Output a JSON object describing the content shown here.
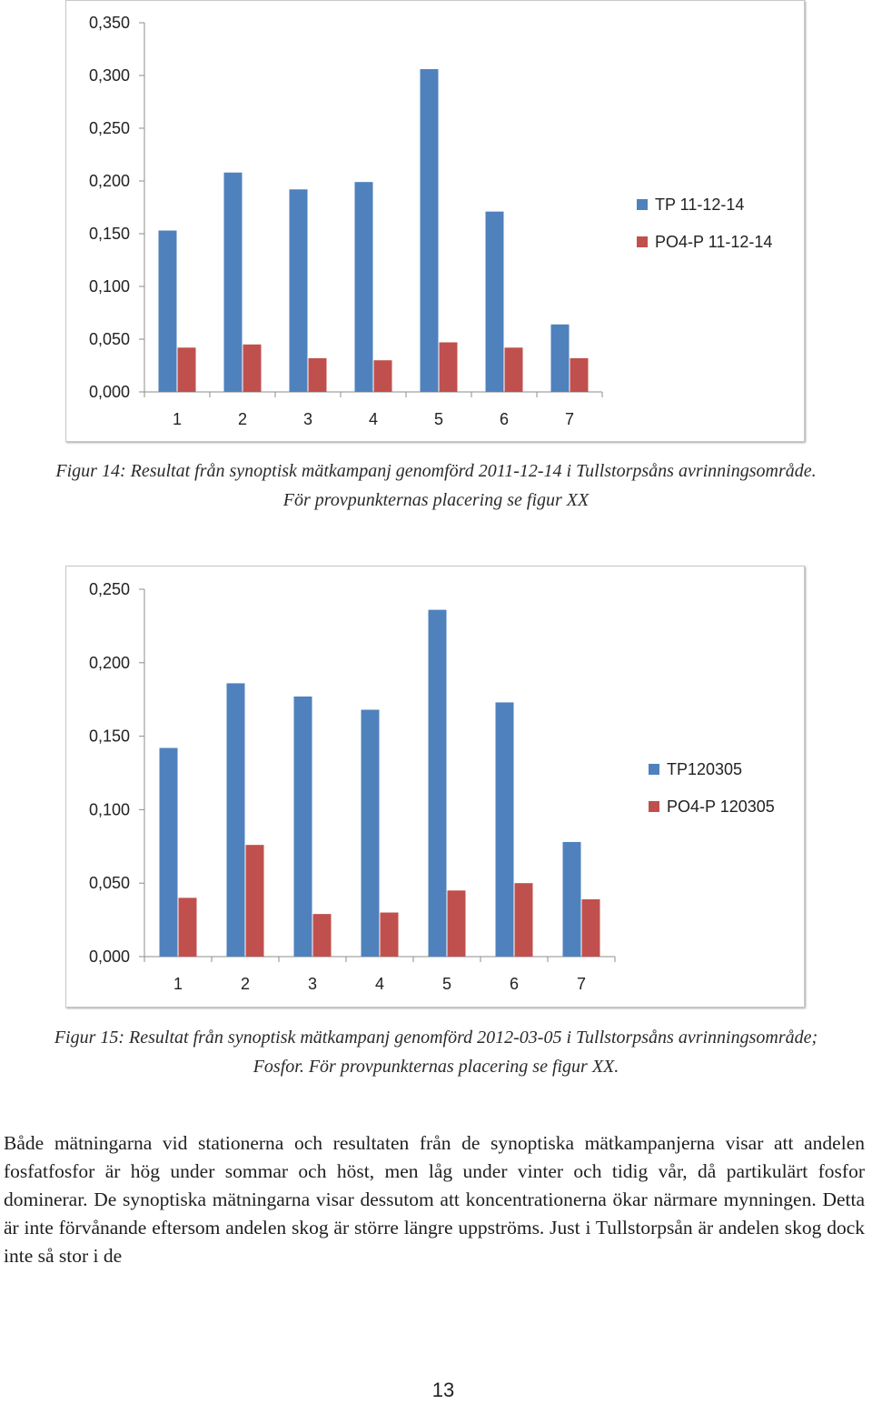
{
  "chart_data": [
    {
      "type": "bar",
      "categories": [
        "1",
        "2",
        "3",
        "4",
        "5",
        "6",
        "7"
      ],
      "series": [
        {
          "name": "TP 11-12-14",
          "color": "#4f81bd",
          "values": [
            0.153,
            0.208,
            0.192,
            0.199,
            0.306,
            0.171,
            0.064
          ]
        },
        {
          "name": "PO4-P 11-12-14",
          "color": "#c0504d",
          "values": [
            0.042,
            0.045,
            0.032,
            0.03,
            0.047,
            0.042,
            0.032
          ]
        }
      ],
      "yticks": [
        "0,000",
        "0,050",
        "0,100",
        "0,150",
        "0,200",
        "0,250",
        "0,300",
        "0,350"
      ],
      "ylim": [
        0,
        0.35
      ],
      "title": "",
      "xlabel": "",
      "ylabel": "",
      "grid": false,
      "legend": "right"
    },
    {
      "type": "bar",
      "categories": [
        "1",
        "2",
        "3",
        "4",
        "5",
        "6",
        "7"
      ],
      "series": [
        {
          "name": "TP120305",
          "color": "#4f81bd",
          "values": [
            0.142,
            0.186,
            0.177,
            0.168,
            0.236,
            0.173,
            0.078
          ]
        },
        {
          "name": "PO4-P 120305",
          "color": "#c0504d",
          "values": [
            0.04,
            0.076,
            0.029,
            0.03,
            0.045,
            0.05,
            0.039
          ]
        }
      ],
      "yticks": [
        "0,000",
        "0,050",
        "0,100",
        "0,150",
        "0,200",
        "0,250"
      ],
      "ylim": [
        0,
        0.25
      ],
      "title": "",
      "xlabel": "",
      "ylabel": "",
      "grid": false,
      "legend": "right"
    }
  ],
  "captions": {
    "figure14_line1": "Figur 14: Resultat från synoptisk mätkampanj genomförd 2011-12-14 i Tullstorpsåns avrinningsområde.",
    "figure14_line2": "För provpunkternas placering se figur XX",
    "figure15_line1": "Figur 15: Resultat från synoptisk mätkampanj genomförd 2012-03-05 i Tullstorpsåns avrinningsområde;",
    "figure15_line2": "Fosfor. För provpunkternas placering se figur XX."
  },
  "body_text": "Både mätningarna vid stationerna och resultaten från de synoptiska mätkampanjerna visar att andelen fosfatfosfor är hög under sommar och höst, men låg under vinter och tidig vår, då partikulärt fosfor dominerar. De synoptiska mätningarna visar dessutom att koncentrationerna ökar närmare mynningen. Detta är inte förvånande eftersom andelen skog är större längre uppströms. Just i Tullstorpsån är andelen skog dock inte så stor i de",
  "page_number": "13"
}
